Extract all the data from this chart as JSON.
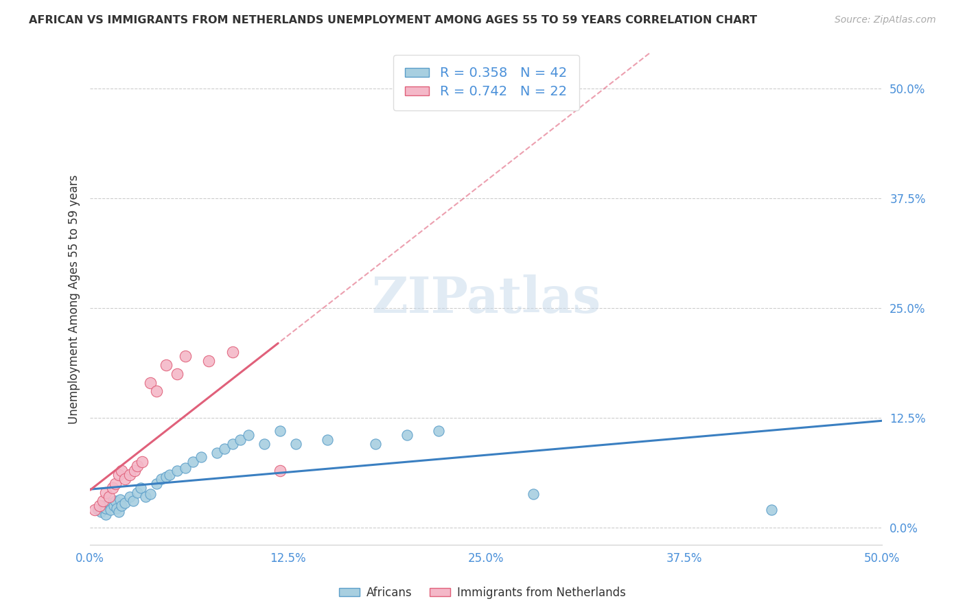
{
  "title": "AFRICAN VS IMMIGRANTS FROM NETHERLANDS UNEMPLOYMENT AMONG AGES 55 TO 59 YEARS CORRELATION CHART",
  "source": "Source: ZipAtlas.com",
  "ylabel": "Unemployment Among Ages 55 to 59 years",
  "xlim": [
    0.0,
    0.5
  ],
  "ylim": [
    -0.02,
    0.54
  ],
  "xtick_labels": [
    "0.0%",
    "12.5%",
    "25.0%",
    "37.5%",
    "50.0%"
  ],
  "xtick_positions": [
    0.0,
    0.125,
    0.25,
    0.375,
    0.5
  ],
  "ytick_labels": [
    "0.0%",
    "12.5%",
    "25.0%",
    "37.5%",
    "50.0%"
  ],
  "ytick_positions": [
    0.0,
    0.125,
    0.25,
    0.375,
    0.5
  ],
  "african_color": "#a8cfe0",
  "african_edge_color": "#5b9ec9",
  "netherlands_color": "#f4b8c8",
  "netherlands_edge_color": "#e0607a",
  "african_line_color": "#3a7fc1",
  "netherlands_line_color": "#e0607a",
  "african_R": 0.358,
  "african_N": 42,
  "netherlands_R": 0.742,
  "netherlands_N": 22,
  "african_x": [
    0.005,
    0.007,
    0.008,
    0.01,
    0.01,
    0.012,
    0.013,
    0.015,
    0.016,
    0.017,
    0.018,
    0.019,
    0.02,
    0.022,
    0.025,
    0.027,
    0.03,
    0.032,
    0.035,
    0.038,
    0.042,
    0.045,
    0.048,
    0.05,
    0.055,
    0.06,
    0.065,
    0.07,
    0.08,
    0.085,
    0.09,
    0.095,
    0.1,
    0.11,
    0.12,
    0.13,
    0.15,
    0.18,
    0.2,
    0.22,
    0.28,
    0.43
  ],
  "african_y": [
    0.02,
    0.018,
    0.025,
    0.015,
    0.022,
    0.028,
    0.02,
    0.025,
    0.03,
    0.022,
    0.018,
    0.032,
    0.025,
    0.028,
    0.035,
    0.03,
    0.04,
    0.045,
    0.035,
    0.038,
    0.05,
    0.055,
    0.058,
    0.06,
    0.065,
    0.068,
    0.075,
    0.08,
    0.085,
    0.09,
    0.095,
    0.1,
    0.105,
    0.095,
    0.11,
    0.095,
    0.1,
    0.095,
    0.105,
    0.11,
    0.038,
    0.02
  ],
  "netherlands_x": [
    0.003,
    0.006,
    0.008,
    0.01,
    0.012,
    0.014,
    0.016,
    0.018,
    0.02,
    0.022,
    0.025,
    0.028,
    0.03,
    0.033,
    0.038,
    0.042,
    0.048,
    0.055,
    0.06,
    0.075,
    0.09,
    0.12
  ],
  "netherlands_y": [
    0.02,
    0.025,
    0.03,
    0.04,
    0.035,
    0.045,
    0.05,
    0.06,
    0.065,
    0.055,
    0.06,
    0.065,
    0.07,
    0.075,
    0.165,
    0.155,
    0.185,
    0.175,
    0.195,
    0.19,
    0.2,
    0.065
  ],
  "background_color": "#ffffff",
  "grid_color": "#cccccc",
  "watermark_text": "ZIPatlas",
  "legend_african": "Africans",
  "legend_netherlands": "Immigrants from Netherlands"
}
